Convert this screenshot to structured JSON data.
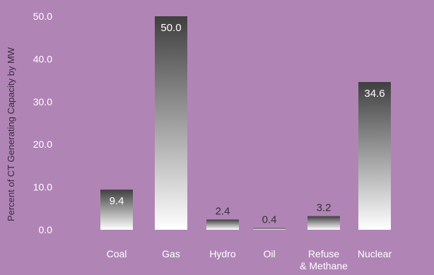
{
  "chart_data": {
    "type": "bar",
    "title": "",
    "xlabel": "",
    "ylabel": "Percent of CT Generating Capacity by MW",
    "categories": [
      "Coal",
      "Gas",
      "Hydro",
      "Oil",
      "Refuse\n& Methane",
      "Nuclear"
    ],
    "values": [
      9.4,
      50.0,
      2.4,
      0.4,
      3.2,
      34.6
    ],
    "data_labels": [
      "9.4",
      "50.0",
      "2.4",
      "0.4",
      "3.2",
      "34.6"
    ],
    "ylim": [
      0,
      50
    ],
    "yticks": [
      "0.0",
      "10.0",
      "20.0",
      "30.0",
      "40.0",
      "50.0"
    ],
    "grid": false,
    "legend": "none",
    "colors": {
      "background": "#b085b6",
      "bar_top": "#3f3f3f",
      "bar_bottom": "#ffffff",
      "text": "#ffffff",
      "ylabel_text": "#3a2a3c",
      "label_dark": "#333333"
    }
  }
}
